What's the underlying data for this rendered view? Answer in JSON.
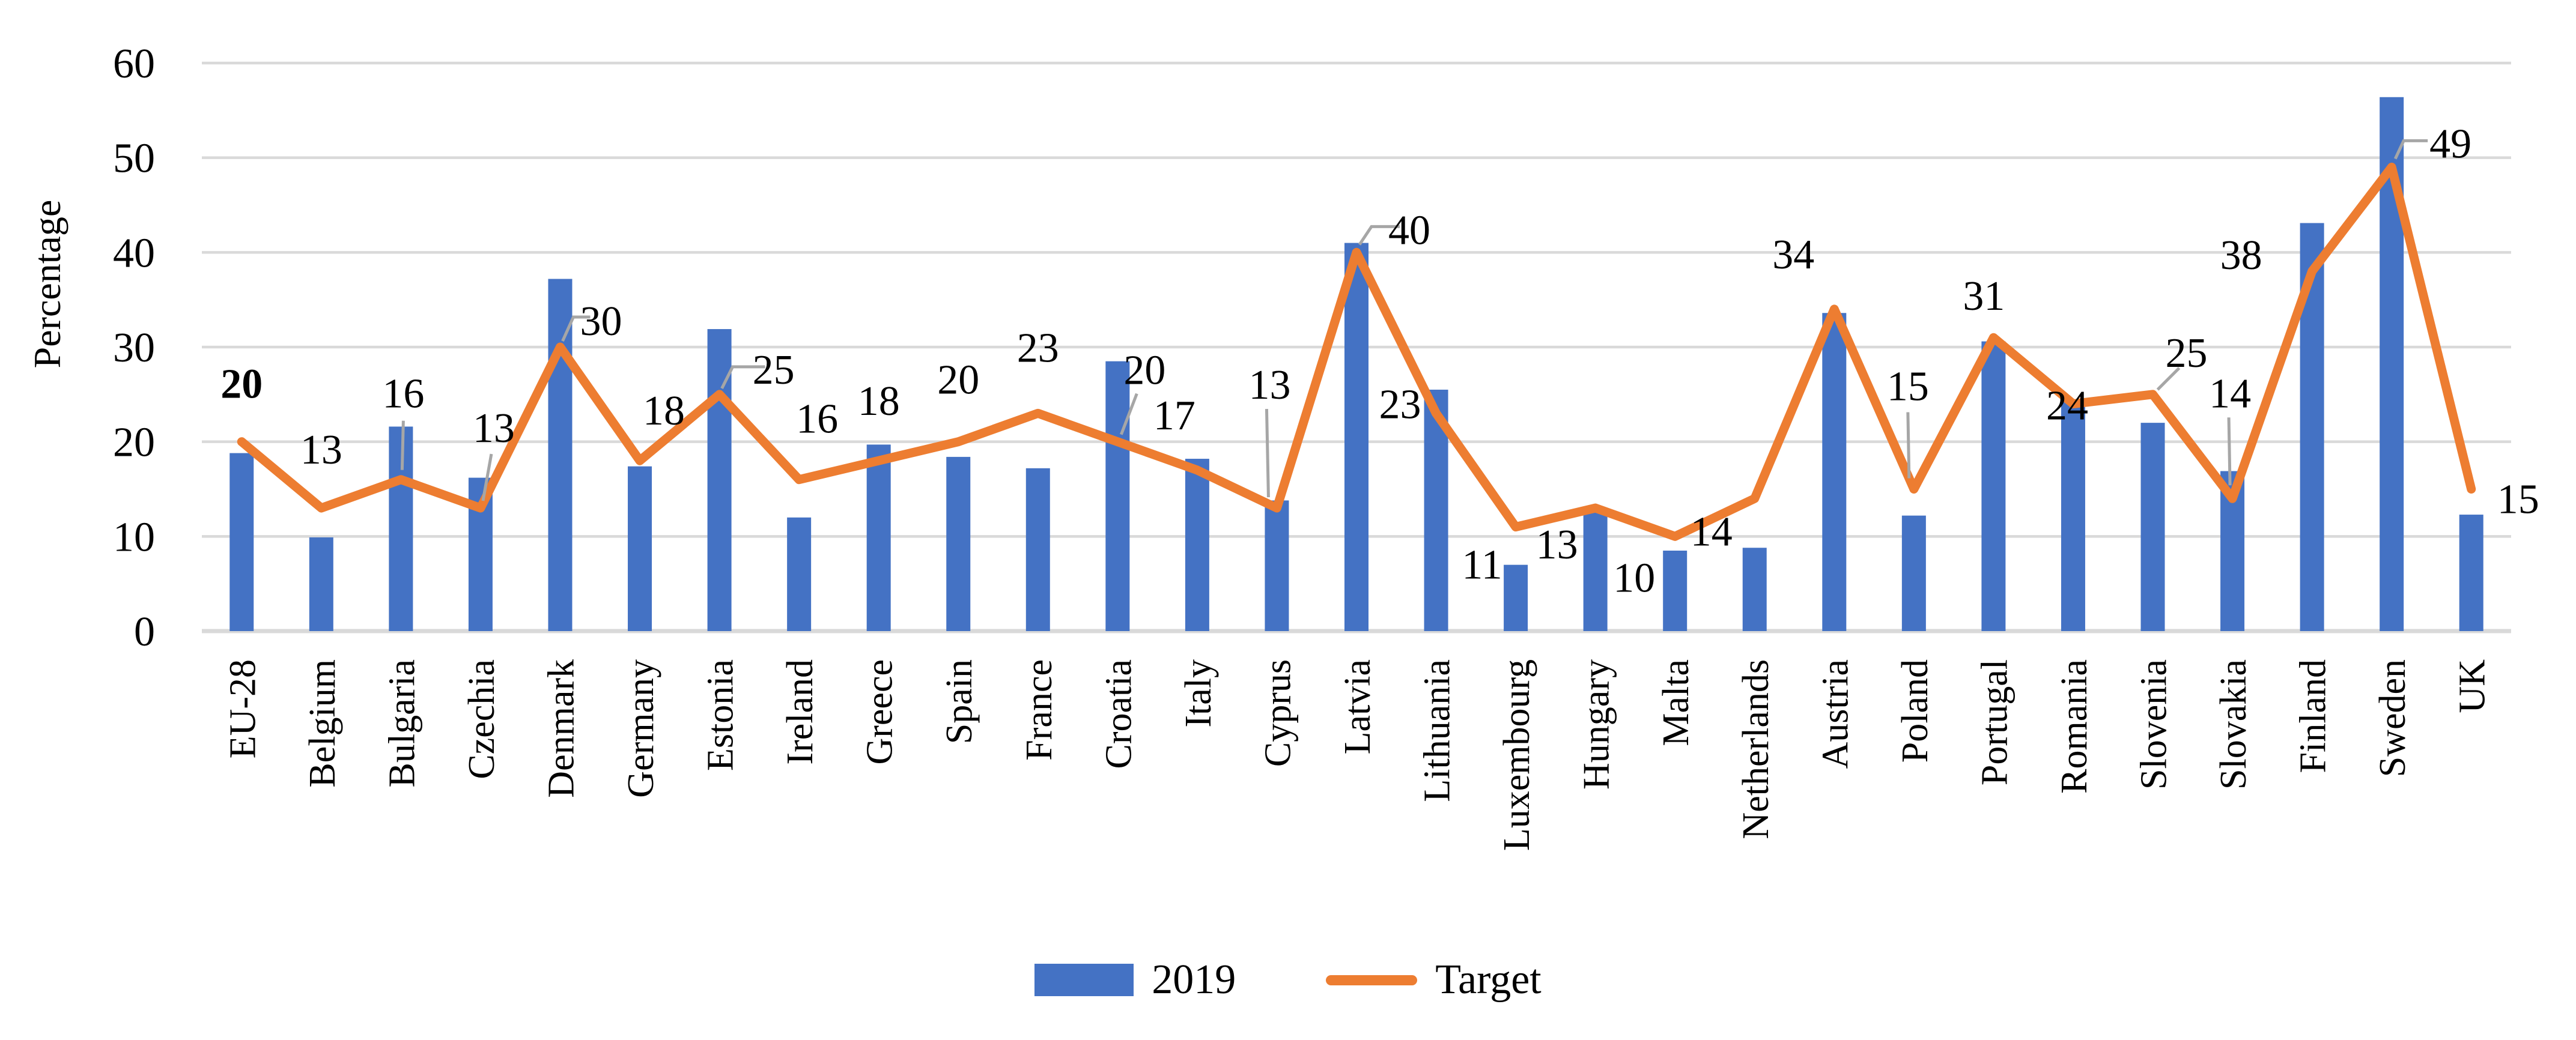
{
  "colors": {
    "bar": "#4472C4",
    "line": "#ED7D31",
    "gridline": "#D9D9D9",
    "leader": "#A6A6A6",
    "text": "#000000",
    "background": "#FFFFFF"
  },
  "chart_data": {
    "type": "bar+line",
    "title": "",
    "ylabel": "Percentage",
    "xlabel": "",
    "ylim": [
      0,
      60
    ],
    "yticks": [
      0,
      10,
      20,
      30,
      40,
      50,
      60
    ],
    "grid": true,
    "legend_position": "bottom-center",
    "categories": [
      "EU-28",
      "Belgium",
      "Bulgaria",
      "Czechia",
      "Denmark",
      "Germany",
      "Estonia",
      "Ireland",
      "Greece",
      "Spain",
      "France",
      "Croatia",
      "Italy",
      "Cyprus",
      "Latvia",
      "Lithuania",
      "Luxembourg",
      "Hungary",
      "Malta",
      "Netherlands",
      "Austria",
      "Poland",
      "Portugal",
      "Romania",
      "Slovenia",
      "Slovakia",
      "Finland",
      "Sweden",
      "UK"
    ],
    "series": [
      {
        "name": "2019",
        "type": "bar",
        "color": "#4472C4",
        "values": [
          18.8,
          9.9,
          21.6,
          16.2,
          37.2,
          17.4,
          31.9,
          12.0,
          19.7,
          18.4,
          17.2,
          28.5,
          18.2,
          13.8,
          41.0,
          25.5,
          7.0,
          12.6,
          8.5,
          8.8,
          33.6,
          12.2,
          30.6,
          24.3,
          22.0,
          16.9,
          43.1,
          56.4,
          12.3
        ]
      },
      {
        "name": "Target",
        "type": "line",
        "color": "#ED7D31",
        "values": [
          20,
          13,
          16,
          13,
          30,
          18,
          25,
          16,
          18,
          20,
          23,
          20,
          17,
          13,
          40,
          23,
          11,
          13,
          10,
          14,
          34,
          15,
          31,
          24,
          25,
          14,
          38,
          49,
          15
        ],
        "data_labels": true
      }
    ]
  }
}
